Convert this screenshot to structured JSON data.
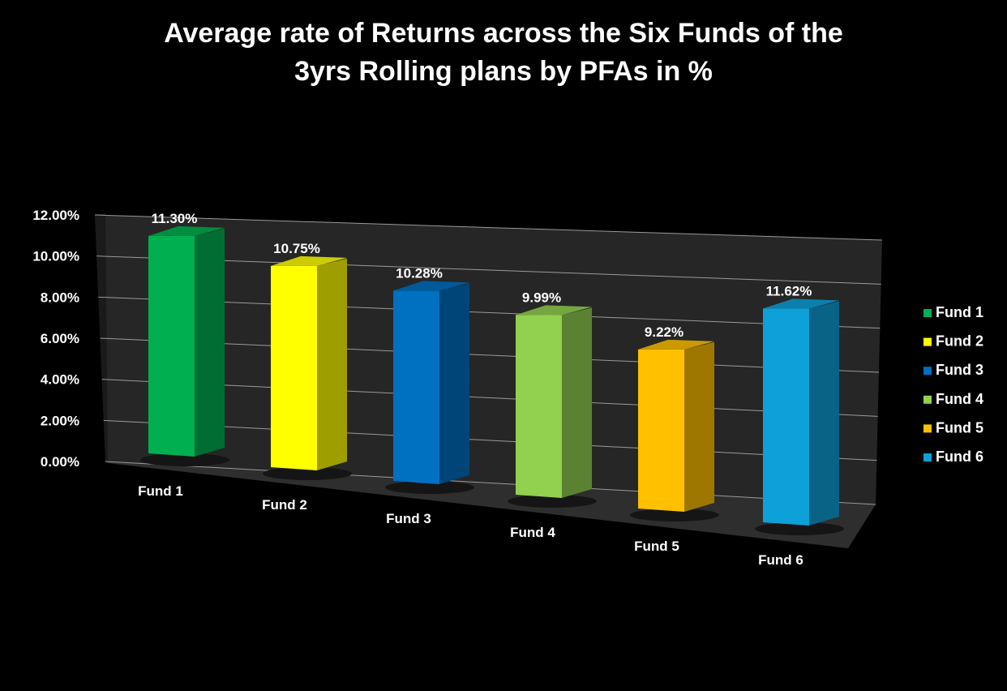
{
  "chart_data": {
    "type": "bar",
    "title_lines": [
      "Average rate of Returns across the Six Funds of the",
      "3yrs Rolling plans by PFAs in %"
    ],
    "xlabel": "",
    "ylabel": "",
    "categories": [
      "Fund 1",
      "Fund 2",
      "Fund 3",
      "Fund 4",
      "Fund 5",
      "Fund 6"
    ],
    "values": [
      11.3,
      10.75,
      10.28,
      9.99,
      9.22,
      11.62
    ],
    "data_labels": [
      "11.30%",
      "10.75%",
      "10.28%",
      "9.99%",
      "9.22%",
      "11.62%"
    ],
    "ylim": [
      0,
      12
    ],
    "y_ticks": [
      0,
      2,
      4,
      6,
      8,
      10,
      12
    ],
    "y_tick_labels": [
      "0.00%",
      "2.00%",
      "4.00%",
      "6.00%",
      "8.00%",
      "10.00%",
      "12.00%"
    ],
    "grid": true,
    "legend_position": "right",
    "legend": [
      "Fund 1",
      "Fund 2",
      "Fund 3",
      "Fund 4",
      "Fund 5",
      "Fund 6"
    ],
    "colors": [
      "#00b050",
      "#ffff00",
      "#0070c0",
      "#92d050",
      "#ffc000",
      "#0ea0d8"
    ],
    "background": "#000000",
    "text_color": "#ffffff",
    "wall_color": "#262626"
  }
}
